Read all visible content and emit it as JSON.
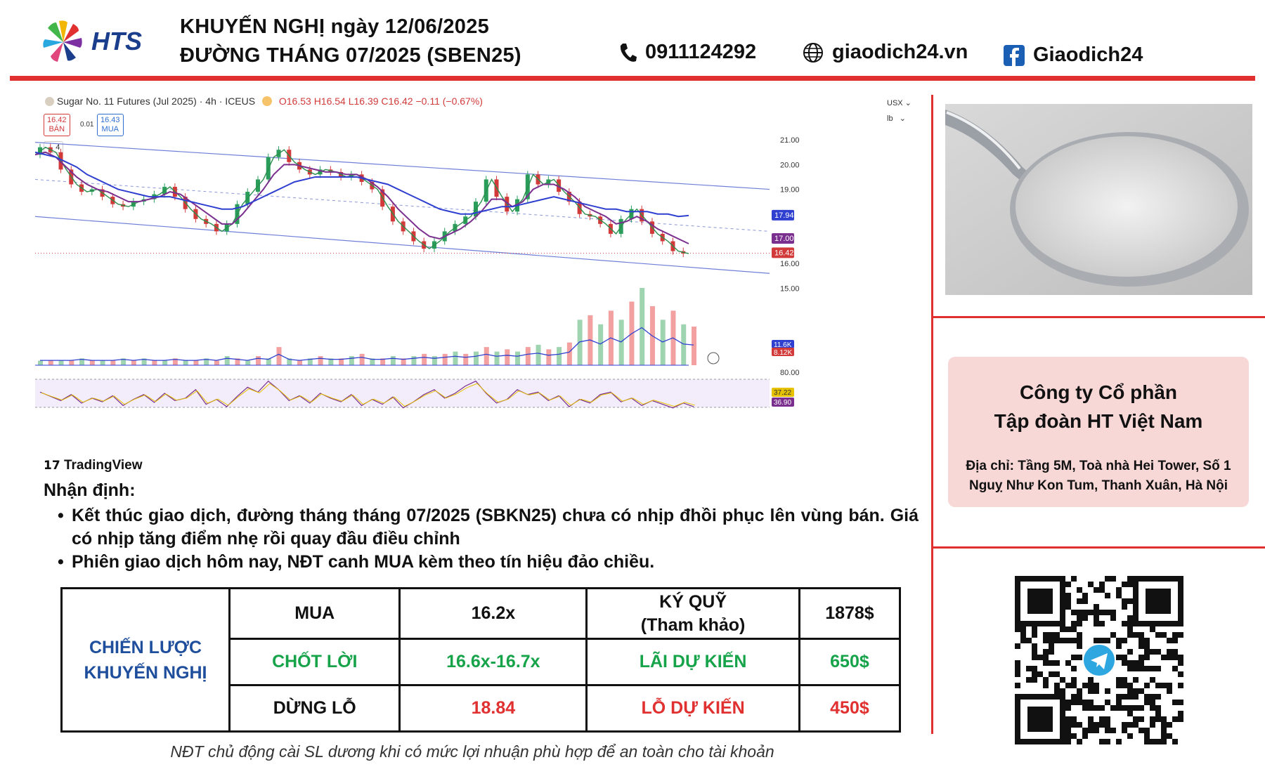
{
  "header": {
    "brand": "HTS",
    "title_line1": "KHUYẾN NGHỊ ngày 12/06/2025",
    "title_line2": "ĐƯỜNG THÁNG 07/2025 (SBEN25)",
    "phone": "0911124292",
    "website": "giaodich24.vn",
    "facebook": "Giaodich24",
    "colors": {
      "accent_red": "#e03030",
      "brand_blue": "#1b3e8c"
    }
  },
  "chart_header": {
    "instrument": "Sugar No. 11 Futures (Jul 2025) · 4h · ICEUS",
    "ohlc": "O16.53 H16.54 L16.39 C16.42 −0.11 (−0.67%)",
    "sell_price": "16.42",
    "sell_label": "BÁN",
    "spread": "0.01",
    "buy_price": "16.43",
    "buy_label": "MUA",
    "indicator_count": "4",
    "currency": "USX",
    "unit": "lb",
    "watermark": "TradingView"
  },
  "chart_data": {
    "type": "line",
    "title": "",
    "xlabel": "",
    "ylabel": "",
    "ylim": [
      14.5,
      21.6
    ],
    "y_ticks": [
      15.0,
      16.0,
      19.0,
      20.0,
      21.0
    ],
    "y_tick_labels": [
      "15.00",
      "16.00",
      "19.00",
      "20.00",
      "21.00"
    ],
    "grid": false,
    "series": [
      {
        "values": [
          20.4,
          20.7,
          20.5,
          19.8,
          19.2,
          18.9,
          19.0,
          18.7,
          18.4,
          18.3,
          18.5,
          18.6,
          18.8,
          19.1,
          18.7,
          18.2,
          17.8,
          17.6,
          17.3,
          17.6,
          18.4,
          18.9,
          19.4,
          20.3,
          20.6,
          20.1,
          19.8,
          19.6,
          19.8,
          19.7,
          19.5,
          19.6,
          19.3,
          19.0,
          18.3,
          17.7,
          17.3,
          16.9,
          16.6,
          16.9,
          17.3,
          17.6,
          17.9,
          18.5,
          19.4,
          18.7,
          18.1,
          18.6,
          19.6,
          19.2,
          19.4,
          18.9,
          18.5,
          18.0,
          17.9,
          17.6,
          17.2,
          17.8,
          18.2,
          17.7,
          17.2,
          16.9,
          16.5,
          16.4
        ],
        "color": "#2a8f4d"
      },
      {
        "values": [
          20.4,
          20.5,
          20.3,
          19.9,
          19.5,
          19.2,
          19.0,
          18.9,
          18.7,
          18.5,
          18.5,
          18.6,
          18.7,
          18.9,
          18.8,
          18.5,
          18.2,
          17.9,
          17.6,
          17.6,
          18.0,
          18.5,
          19.0,
          19.6,
          20.0,
          20.0,
          19.9,
          19.8,
          19.7,
          19.7,
          19.6,
          19.6,
          19.4,
          19.1,
          18.7,
          18.2,
          17.8,
          17.4,
          17.1,
          17.0,
          17.2,
          17.4,
          17.7,
          18.1,
          18.6,
          18.6,
          18.3,
          18.5,
          19.0,
          19.2,
          19.2,
          19.0,
          18.7,
          18.3,
          18.1,
          17.9,
          17.6,
          17.7,
          17.9,
          17.7,
          17.4,
          17.2,
          17.0,
          16.8
        ],
        "color": "#7a2f8f"
      },
      {
        "values": [
          20.5,
          20.4,
          20.3,
          20.1,
          19.9,
          19.6,
          19.4,
          19.2,
          19.0,
          18.9,
          18.8,
          18.7,
          18.7,
          18.7,
          18.6,
          18.5,
          18.4,
          18.3,
          18.2,
          18.2,
          18.3,
          18.5,
          18.7,
          18.9,
          19.1,
          19.3,
          19.4,
          19.5,
          19.5,
          19.5,
          19.5,
          19.5,
          19.4,
          19.3,
          19.2,
          19.0,
          18.8,
          18.6,
          18.4,
          18.2,
          18.1,
          18.0,
          18.0,
          18.1,
          18.2,
          18.3,
          18.3,
          18.4,
          18.5,
          18.6,
          18.7,
          18.6,
          18.5,
          18.4,
          18.3,
          18.2,
          18.2,
          18.1,
          18.1,
          18.1,
          18.0,
          18.0,
          17.9,
          17.94
        ],
        "color": "#2f3fd0"
      }
    ],
    "channel": {
      "upper": [
        20.9,
        19.0
      ],
      "lower": [
        17.9,
        15.6
      ],
      "middle": [
        19.4,
        17.3
      ]
    },
    "price_tags": [
      {
        "label": "17.94",
        "value": 17.94,
        "color": "#2f3fd0"
      },
      {
        "label": "17.00",
        "value": 17.0,
        "color": "#7a2f8f"
      },
      {
        "label": "16.42",
        "value": 16.42,
        "color": "#d23a3a"
      }
    ],
    "volume": {
      "values": [
        2,
        2,
        2,
        2,
        3,
        2,
        2,
        2,
        3,
        2,
        3,
        2,
        2,
        3,
        2,
        2,
        3,
        2,
        4,
        3,
        2,
        4,
        3,
        8,
        3,
        2,
        3,
        4,
        3,
        3,
        4,
        5,
        3,
        3,
        4,
        3,
        4,
        5,
        4,
        5,
        6,
        5,
        6,
        8,
        6,
        7,
        6,
        8,
        9,
        7,
        8,
        10,
        20,
        22,
        18,
        24,
        20,
        28,
        34,
        26,
        20,
        24,
        18,
        17
      ],
      "labels": [
        "11.6K",
        "8.12K"
      ]
    },
    "rsi": {
      "values": [
        62,
        55,
        48,
        58,
        44,
        52,
        46,
        56,
        40,
        50,
        58,
        45,
        60,
        48,
        52,
        66,
        42,
        50,
        38,
        55,
        70,
        62,
        80,
        66,
        48,
        56,
        44,
        60,
        52,
        46,
        58,
        40,
        50,
        42,
        54,
        36,
        46,
        58,
        66,
        52,
        60,
        72,
        80,
        60,
        44,
        50,
        66,
        58,
        62,
        48,
        56,
        38,
        50,
        44,
        58,
        62,
        46,
        52,
        40,
        48,
        42,
        36,
        44,
        38
      ],
      "top_label": "80.00",
      "tags": [
        "37.22",
        "36.90"
      ]
    }
  },
  "commentary": {
    "heading": "Nhận định:",
    "bullets": [
      "Kết thúc giao dịch, đường tháng tháng 07/2025 (SBKN25) chưa có nhịp đhồi phục lên vùng bán. Giá có nhịp tăng điểm nhẹ rồi quay đầu điều chỉnh",
      "Phiên giao dịch hôm nay, NĐT canh MUA kèm theo tín hiệu đảo chiều."
    ]
  },
  "strategy": {
    "label_line1": "CHIẾN LƯỢC",
    "label_line2": "KHUYẾN NGHỊ",
    "action": "MUA",
    "entry": "16.2x",
    "margin_label_line1": "KÝ QUỸ",
    "margin_label_line2": "(Tham khảo)",
    "margin_value": "1878$",
    "take_profit_label": "CHỐT LỜI",
    "take_profit_value": "16.6x-16.7x",
    "expected_profit_label": "LÃI DỰ KIẾN",
    "expected_profit_value": "650$",
    "stop_loss_label": "DỪNG LỖ",
    "stop_loss_value": "18.84",
    "expected_loss_label": "LỖ DỰ KIẾN",
    "expected_loss_value": "450$",
    "footnote": "NĐT chủ động cài SL dương khi có mức lợi nhuận phù hợp để an toàn cho tài khoản"
  },
  "company": {
    "name_line1": "Công ty Cổ phần",
    "name_line2": "Tập đoàn HT Việt Nam",
    "address_line1": "Địa chỉ: Tầng 5M, Toà nhà Hei Tower, Số 1",
    "address_line2": "Nguỵ Như Kon Tum, Thanh Xuân, Hà Nội"
  }
}
